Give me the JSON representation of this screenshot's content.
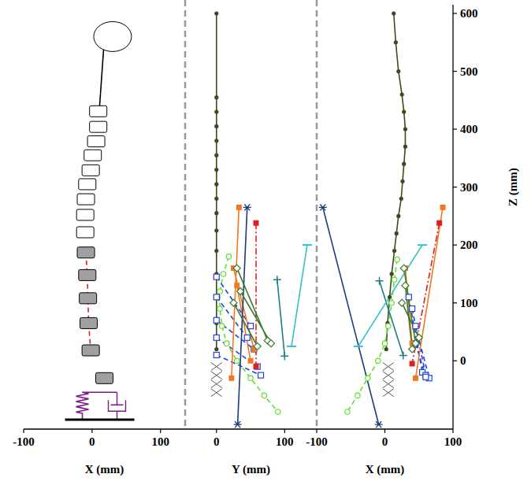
{
  "chart_data": [
    {
      "type": "scatter",
      "xlabel": "X (mm)",
      "xlim": [
        -100,
        136
      ],
      "xticks": [
        -100,
        0,
        100
      ],
      "ylim": [
        -118,
        615
      ],
      "tick_labels": "x",
      "series": [
        {
          "color": "#ffffff",
          "marker": "box",
          "line_style": "none",
          "x": [
            9,
            9,
            6,
            1,
            -2,
            -7,
            -9,
            -10,
            -10
          ],
          "values": [
            431,
            404,
            379,
            355,
            329,
            305,
            279,
            252,
            222
          ]
        },
        {
          "color": "#a0a0a0",
          "marker": "box",
          "line_style": "none",
          "x": [
            -9,
            -7,
            -6,
            -5,
            -2,
            18
          ],
          "values": [
            187,
            148,
            108,
            65,
            18,
            -30
          ]
        },
        {
          "color": "#e02020",
          "marker": "none",
          "line_style": "dashed",
          "x": [
            -9,
            -7,
            -6,
            -5,
            -2
          ],
          "values": [
            187,
            148,
            108,
            65,
            18
          ]
        },
        {
          "color": "#000000",
          "marker": "none",
          "line_style": "solid",
          "x": [
            17,
            11
          ],
          "values": [
            540,
            440
          ]
        },
        {
          "color": "#ffffff",
          "marker": "ellipse",
          "line_style": "none",
          "x": [
            30
          ],
          "values": [
            560
          ]
        }
      ]
    },
    {
      "type": "line",
      "xlabel": "Y (mm)",
      "xlim": [
        -46,
        147
      ],
      "xticks": [
        0,
        100
      ],
      "ylim": [
        -118,
        615
      ],
      "tick_labels": "x",
      "series": [
        {
          "color": "#3d4a1c",
          "marker": "dot",
          "line_style": "solid",
          "x": [
            0,
            0,
            0,
            0,
            0,
            0,
            0,
            0,
            0,
            0,
            0,
            0,
            0,
            0,
            0,
            0
          ],
          "values": [
            600,
            455,
            430,
            405,
            380,
            355,
            330,
            305,
            280,
            255,
            225,
            190,
            150,
            110,
            65,
            20
          ]
        },
        {
          "color": "#555555",
          "marker": "x",
          "line_style": "none",
          "x": [
            0,
            0,
            0,
            0
          ],
          "values": [
            -10,
            -25,
            -40,
            -55
          ]
        },
        {
          "color": "#66dd33",
          "marker": "circle",
          "line_style": "dashed",
          "x": [
            18,
            10,
            5,
            5,
            8,
            15,
            30,
            50,
            70,
            90
          ],
          "values": [
            180,
            150,
            120,
            90,
            60,
            30,
            0,
            -30,
            -60,
            -88
          ]
        },
        {
          "color": "#2244dd",
          "marker": "open_square",
          "line_style": "dashed",
          "x": [
            0,
            50,
            null,
            0,
            45,
            null,
            0,
            55,
            null,
            0,
            60,
            null,
            0,
            65
          ],
          "values": [
            145,
            60,
            null,
            110,
            40,
            null,
            70,
            20,
            null,
            40,
            -10,
            null,
            10,
            -25
          ]
        },
        {
          "color": "#f07820",
          "marker": "square",
          "line_style": "solid",
          "x": [
            33,
            22,
            null,
            25,
            55,
            null,
            30,
            50
          ],
          "values": [
            265,
            -30,
            null,
            160,
            20,
            null,
            130,
            0
          ]
        },
        {
          "color": "#e02020",
          "marker": "square",
          "line_style": "dashdot",
          "x": [
            58,
            58
          ],
          "values": [
            238,
            -10
          ]
        },
        {
          "color": "#1a3a7a",
          "marker": "star",
          "line_style": "solid",
          "x": [
            45,
            31
          ],
          "values": [
            265,
            -110
          ]
        },
        {
          "color": "#1a8080",
          "marker": "plus",
          "line_style": "solid",
          "x": [
            89,
            100
          ],
          "values": [
            140,
            8
          ]
        },
        {
          "color": "#30c0c8",
          "marker": "dash",
          "line_style": "solid",
          "x": [
            133,
            110
          ],
          "values": [
            200,
            25
          ]
        },
        {
          "color": "#3a7a2a",
          "marker": "open_diamond",
          "line_style": "solid",
          "x": [
            30,
            75,
            null,
            35,
            80,
            null,
            25,
            60
          ],
          "values": [
            160,
            35,
            null,
            120,
            30,
            null,
            100,
            25
          ]
        }
      ]
    },
    {
      "type": "line",
      "xlabel": "X (mm)",
      "ylabel": "Z (mm)",
      "xlim": [
        -100,
        100
      ],
      "xticks": [
        -100,
        0,
        100
      ],
      "ylim": [
        -118,
        615
      ],
      "yticks": [
        0,
        100,
        200,
        300,
        400,
        500,
        600
      ],
      "series": [
        {
          "color": "#3d4a1c",
          "marker": "dot",
          "line_style": "solid",
          "x": [
            13,
            16,
            20,
            25,
            28,
            30,
            30,
            28,
            26,
            24,
            20,
            17,
            14,
            10,
            7,
            4,
            2
          ],
          "values": [
            600,
            550,
            500,
            460,
            430,
            400,
            370,
            340,
            310,
            280,
            250,
            220,
            190,
            150,
            110,
            65,
            20
          ]
        },
        {
          "color": "#555555",
          "marker": "x",
          "line_style": "none",
          "x": [
            5,
            5,
            5,
            5
          ],
          "values": [
            -10,
            -25,
            -40,
            -55
          ]
        },
        {
          "color": "#66dd33",
          "marker": "circle",
          "line_style": "dashed",
          "x": [
            18,
            14,
            10,
            5,
            0,
            -10,
            -25,
            -40,
            -55
          ],
          "values": [
            175,
            140,
            100,
            60,
            30,
            0,
            -30,
            -60,
            -88
          ]
        },
        {
          "color": "#2244dd",
          "marker": "open_square",
          "line_style": "dashed",
          "x": [
            35,
            55,
            null,
            40,
            60,
            null,
            45,
            65,
            null,
            45,
            60
          ],
          "values": [
            110,
            -20,
            null,
            90,
            -25,
            null,
            60,
            -30,
            null,
            30,
            -28
          ]
        },
        {
          "color": "#f07820",
          "marker": "square",
          "line_style": "solid",
          "x": [
            85,
            45,
            null,
            30,
            40
          ],
          "values": [
            265,
            -30,
            null,
            160,
            30
          ]
        },
        {
          "color": "#e02020",
          "marker": "square",
          "line_style": "dashdot",
          "x": [
            80,
            40
          ],
          "values": [
            238,
            -5
          ]
        },
        {
          "color": "#1a3a7a",
          "marker": "star",
          "line_style": "solid",
          "x": [
            -91,
            -9
          ],
          "values": [
            265,
            -110
          ]
        },
        {
          "color": "#1a8080",
          "marker": "plus",
          "line_style": "solid",
          "x": [
            -8,
            27
          ],
          "values": [
            138,
            9
          ]
        },
        {
          "color": "#30c0c8",
          "marker": "dash",
          "line_style": "solid",
          "x": [
            55,
            -39
          ],
          "values": [
            200,
            25
          ]
        },
        {
          "color": "#3a7a2a",
          "marker": "open_diamond",
          "line_style": "solid",
          "x": [
            28,
            45,
            null,
            30,
            40,
            null,
            25,
            50
          ],
          "values": [
            160,
            30,
            null,
            130,
            20,
            null,
            100,
            40
          ]
        }
      ]
    }
  ]
}
